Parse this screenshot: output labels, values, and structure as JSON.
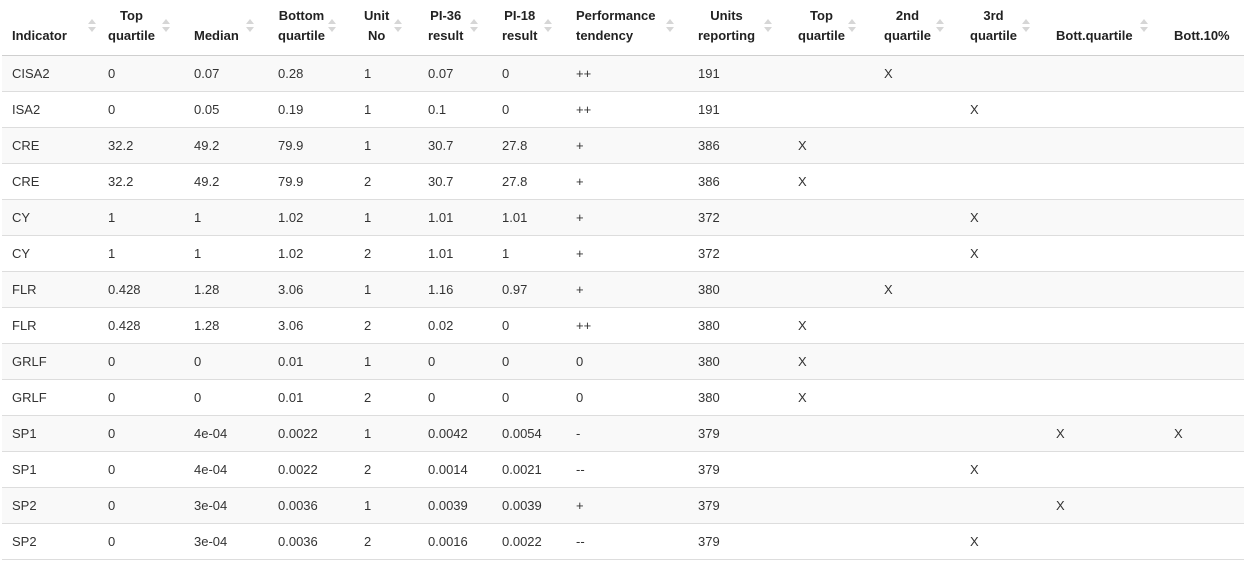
{
  "table": {
    "columns": [
      {
        "key": "indicator",
        "label": "Indicator",
        "label_lines": [
          "",
          "Indicator"
        ]
      },
      {
        "key": "top_quartile_value",
        "label": "Top quartile",
        "label_lines": [
          "Top",
          "quartile"
        ]
      },
      {
        "key": "median",
        "label": "Median",
        "label_lines": [
          "",
          "Median"
        ]
      },
      {
        "key": "bottom_quartile_value",
        "label": "Bottom quartile",
        "label_lines": [
          "Bottom",
          "quartile"
        ]
      },
      {
        "key": "unit_no",
        "label": "Unit No",
        "label_lines": [
          "Unit",
          "No"
        ]
      },
      {
        "key": "pi36",
        "label": "PI-36 result",
        "label_lines": [
          "PI-36",
          "result"
        ]
      },
      {
        "key": "pi18",
        "label": "PI-18 result",
        "label_lines": [
          "PI-18",
          "result"
        ]
      },
      {
        "key": "tendency",
        "label": "Performance tendency",
        "label_lines": [
          "Performance",
          "tendency"
        ]
      },
      {
        "key": "units_reporting",
        "label": "Units reporting",
        "label_lines": [
          "Units",
          "reporting"
        ]
      },
      {
        "key": "q_top",
        "label": "Top quartile",
        "label_lines": [
          "Top",
          "quartile"
        ]
      },
      {
        "key": "q_2nd",
        "label": "2nd quartile",
        "label_lines": [
          "2nd",
          "quartile"
        ]
      },
      {
        "key": "q_3rd",
        "label": "3rd quartile",
        "label_lines": [
          "3rd",
          "quartile"
        ]
      },
      {
        "key": "q_bott",
        "label": "Bott.quartile",
        "label_lines": [
          "",
          "Bott.quartile"
        ]
      },
      {
        "key": "q_bott10",
        "label": "Bott.10%",
        "label_lines": [
          "",
          "Bott.10%"
        ]
      }
    ],
    "rows": [
      [
        "CISA2",
        "0",
        "0.07",
        "0.28",
        "1",
        "0.07",
        "0",
        "++",
        "191",
        "",
        "X",
        "",
        "",
        ""
      ],
      [
        "ISA2",
        "0",
        "0.05",
        "0.19",
        "1",
        "0.1",
        "0",
        "++",
        "191",
        "",
        "",
        "X",
        "",
        ""
      ],
      [
        "CRE",
        "32.2",
        "49.2",
        "79.9",
        "1",
        "30.7",
        "27.8",
        "+",
        "386",
        "X",
        "",
        "",
        "",
        ""
      ],
      [
        "CRE",
        "32.2",
        "49.2",
        "79.9",
        "2",
        "30.7",
        "27.8",
        "+",
        "386",
        "X",
        "",
        "",
        "",
        ""
      ],
      [
        "CY",
        "1",
        "1",
        "1.02",
        "1",
        "1.01",
        "1.01",
        "+",
        "372",
        "",
        "",
        "X",
        "",
        ""
      ],
      [
        "CY",
        "1",
        "1",
        "1.02",
        "2",
        "1.01",
        "1",
        "+",
        "372",
        "",
        "",
        "X",
        "",
        ""
      ],
      [
        "FLR",
        "0.428",
        "1.28",
        "3.06",
        "1",
        "1.16",
        "0.97",
        "+",
        "380",
        "",
        "X",
        "",
        "",
        ""
      ],
      [
        "FLR",
        "0.428",
        "1.28",
        "3.06",
        "2",
        "0.02",
        "0",
        "++",
        "380",
        "X",
        "",
        "",
        "",
        ""
      ],
      [
        "GRLF",
        "0",
        "0",
        "0.01",
        "1",
        "0",
        "0",
        "0",
        "380",
        "X",
        "",
        "",
        "",
        ""
      ],
      [
        "GRLF",
        "0",
        "0",
        "0.01",
        "2",
        "0",
        "0",
        "0",
        "380",
        "X",
        "",
        "",
        "",
        ""
      ],
      [
        "SP1",
        "0",
        "4e-04",
        "0.0022",
        "1",
        "0.0042",
        "0.0054",
        "-",
        "379",
        "",
        "",
        "",
        "X",
        "X"
      ],
      [
        "SP1",
        "0",
        "4e-04",
        "0.0022",
        "2",
        "0.0014",
        "0.0021",
        "--",
        "379",
        "",
        "",
        "X",
        "",
        ""
      ],
      [
        "SP2",
        "0",
        "3e-04",
        "0.0036",
        "1",
        "0.0039",
        "0.0039",
        "+",
        "379",
        "",
        "",
        "",
        "X",
        ""
      ],
      [
        "SP2",
        "0",
        "3e-04",
        "0.0036",
        "2",
        "0.0016",
        "0.0022",
        "--",
        "379",
        "",
        "",
        "X",
        "",
        ""
      ]
    ]
  }
}
